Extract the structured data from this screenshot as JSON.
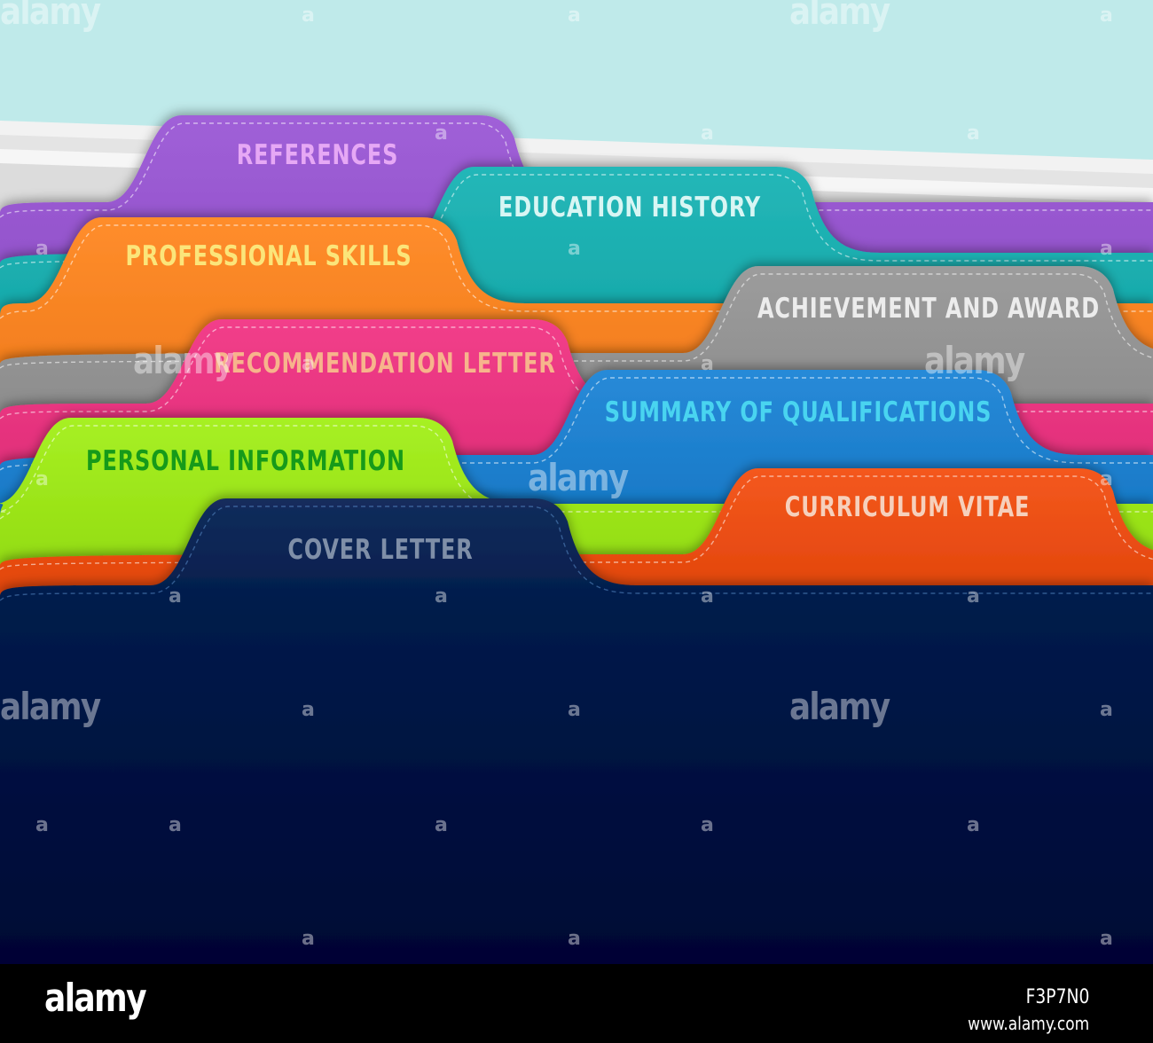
{
  "tabs": [
    {
      "id": "references",
      "label": "REFERENCES",
      "color": "#8e4ec6",
      "text_color": "#e6a8f5"
    },
    {
      "id": "education",
      "label": "EDUCATION HISTORY",
      "color": "#12a5a6",
      "text_color": "#d8f6f4"
    },
    {
      "id": "professional",
      "label": "PROFESSIONAL SKILLS",
      "color": "#f07b1a",
      "text_color": "#fbe57a"
    },
    {
      "id": "achievement",
      "label": "ACHIEVEMENT AND AWARD",
      "color": "#8a8a8a",
      "text_color": "#ececec"
    },
    {
      "id": "recommendation",
      "label": "RECOMMENDATION LETTER",
      "color": "#e02d78",
      "text_color": "#f7b48c"
    },
    {
      "id": "summary",
      "label": "SUMMARY OF QUALIFICATIONS",
      "color": "#1678c6",
      "text_color": "#49d4f0"
    },
    {
      "id": "personal",
      "label": "PERSONAL INFORMATION",
      "color": "#95de12",
      "text_color": "#169a1a"
    },
    {
      "id": "curriculum",
      "label": "CURRICULUM VITAE",
      "color": "#e2460c",
      "text_color": "#f6d0bc"
    },
    {
      "id": "cover",
      "label": "COVER LETTER",
      "color": "#011b4a",
      "text_color": "#7f8fa8"
    }
  ],
  "background_color": "#bfeaea",
  "watermark": {
    "text": "alamy",
    "small": "a"
  },
  "footer": {
    "logo": "alamy",
    "image_id": "F3P7N0",
    "url": "www.alamy.com"
  }
}
